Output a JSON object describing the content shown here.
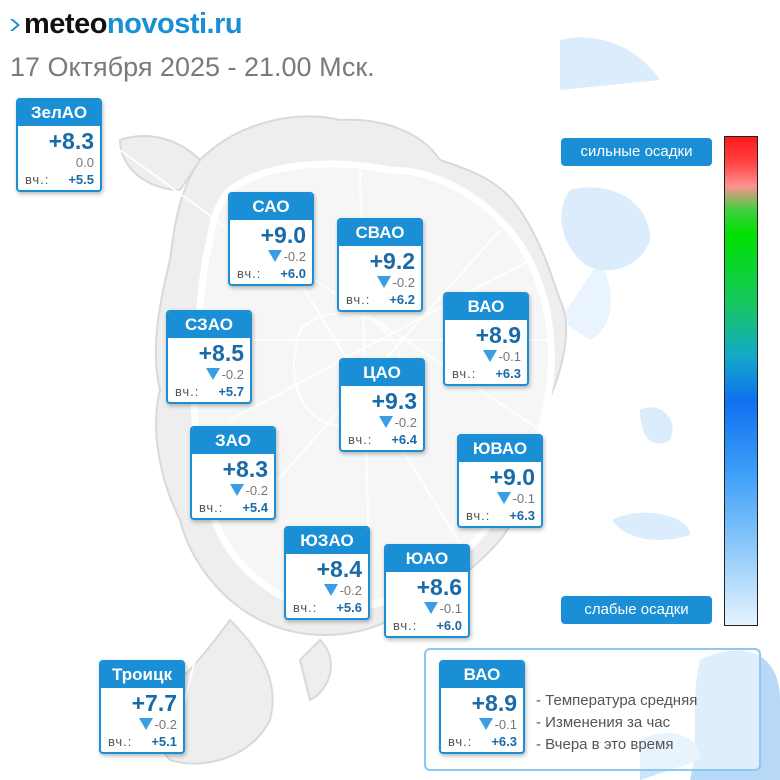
{
  "header": {
    "logo_part1": "meteo",
    "logo_part2": "novosti.ru",
    "datetime": "17 Октября 2025 - 21.00 Мск."
  },
  "colors": {
    "accent": "#1a8fd6",
    "temp_text": "#1a6aa8",
    "arrow": "#3a9de6",
    "legend_border": "#8dc8f0"
  },
  "yesterday_label": "вч.:",
  "districts": [
    {
      "key": "zelao",
      "name": "ЗелАО",
      "temp": "+8.3",
      "change": "0.0",
      "trend": "flat",
      "yesterday": "+5.5"
    },
    {
      "key": "sao",
      "name": "САО",
      "temp": "+9.0",
      "change": "-0.2",
      "trend": "down",
      "yesterday": "+6.0"
    },
    {
      "key": "svao",
      "name": "СВАО",
      "temp": "+9.2",
      "change": "-0.2",
      "trend": "down",
      "yesterday": "+6.2"
    },
    {
      "key": "vao",
      "name": "ВАО",
      "temp": "+8.9",
      "change": "-0.1",
      "trend": "down",
      "yesterday": "+6.3"
    },
    {
      "key": "szao",
      "name": "СЗАО",
      "temp": "+8.5",
      "change": "-0.2",
      "trend": "down",
      "yesterday": "+5.7"
    },
    {
      "key": "cao",
      "name": "ЦАО",
      "temp": "+9.3",
      "change": "-0.2",
      "trend": "down",
      "yesterday": "+6.4"
    },
    {
      "key": "zao",
      "name": "ЗАО",
      "temp": "+8.3",
      "change": "-0.2",
      "trend": "down",
      "yesterday": "+5.4"
    },
    {
      "key": "yuvao",
      "name": "ЮВАО",
      "temp": "+9.0",
      "change": "-0.1",
      "trend": "down",
      "yesterday": "+6.3"
    },
    {
      "key": "yuzao",
      "name": "ЮЗАО",
      "temp": "+8.4",
      "change": "-0.2",
      "trend": "down",
      "yesterday": "+5.6"
    },
    {
      "key": "yuao",
      "name": "ЮАО",
      "temp": "+8.6",
      "change": "-0.1",
      "trend": "down",
      "yesterday": "+6.0"
    },
    {
      "key": "troick",
      "name": "Троицк",
      "temp": "+7.7",
      "change": "-0.2",
      "trend": "down",
      "yesterday": "+5.1"
    }
  ],
  "precip_scale": {
    "top_label": "сильные осадки",
    "bottom_label": "слабые осадки"
  },
  "legend": {
    "sample": {
      "name": "ВАО",
      "temp": "+8.9",
      "change": "-0.1",
      "trend": "down",
      "yesterday": "+6.3"
    },
    "lines": [
      "- Температура средняя",
      "- Изменения за час",
      "- Вчера в это время"
    ]
  }
}
